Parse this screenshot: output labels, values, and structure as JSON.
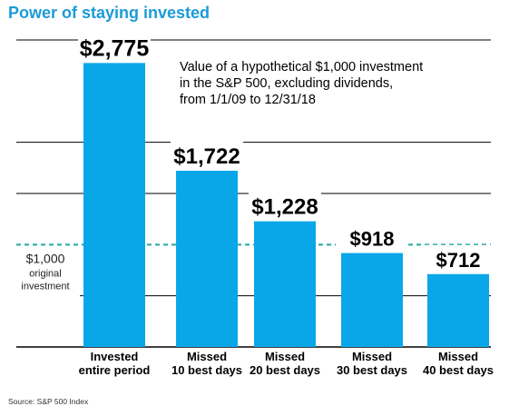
{
  "title": "Power of staying invested",
  "source": "Source: S&P 500 Index",
  "colors": {
    "bar": "#0aa7e8",
    "title": "#1b9bd7",
    "reference": "#1ea8a0",
    "grid": "#000000"
  },
  "chart_data": {
    "type": "bar",
    "title": "Power of staying invested",
    "note": [
      "Value of a hypothetical $1,000 investment",
      "in the S&P 500, excluding dividends,",
      "from 1/1/09 to 12/31/18"
    ],
    "categories": [
      [
        "Invested",
        "entire period"
      ],
      [
        "Missed",
        "10 best days"
      ],
      [
        "Missed",
        "20 best days"
      ],
      [
        "Missed",
        "30 best days"
      ],
      [
        "Missed",
        "40 best days"
      ]
    ],
    "values": [
      2775,
      1722,
      1228,
      918,
      712
    ],
    "value_labels": [
      "$2,775",
      "$1,722",
      "$1,228",
      "$918",
      "$712"
    ],
    "reference_line": {
      "value": 1000,
      "label": [
        "$1,000",
        "original",
        "investment"
      ]
    },
    "ylim": [
      0,
      3000
    ],
    "grid": true,
    "xlabel": "",
    "ylabel": ""
  }
}
